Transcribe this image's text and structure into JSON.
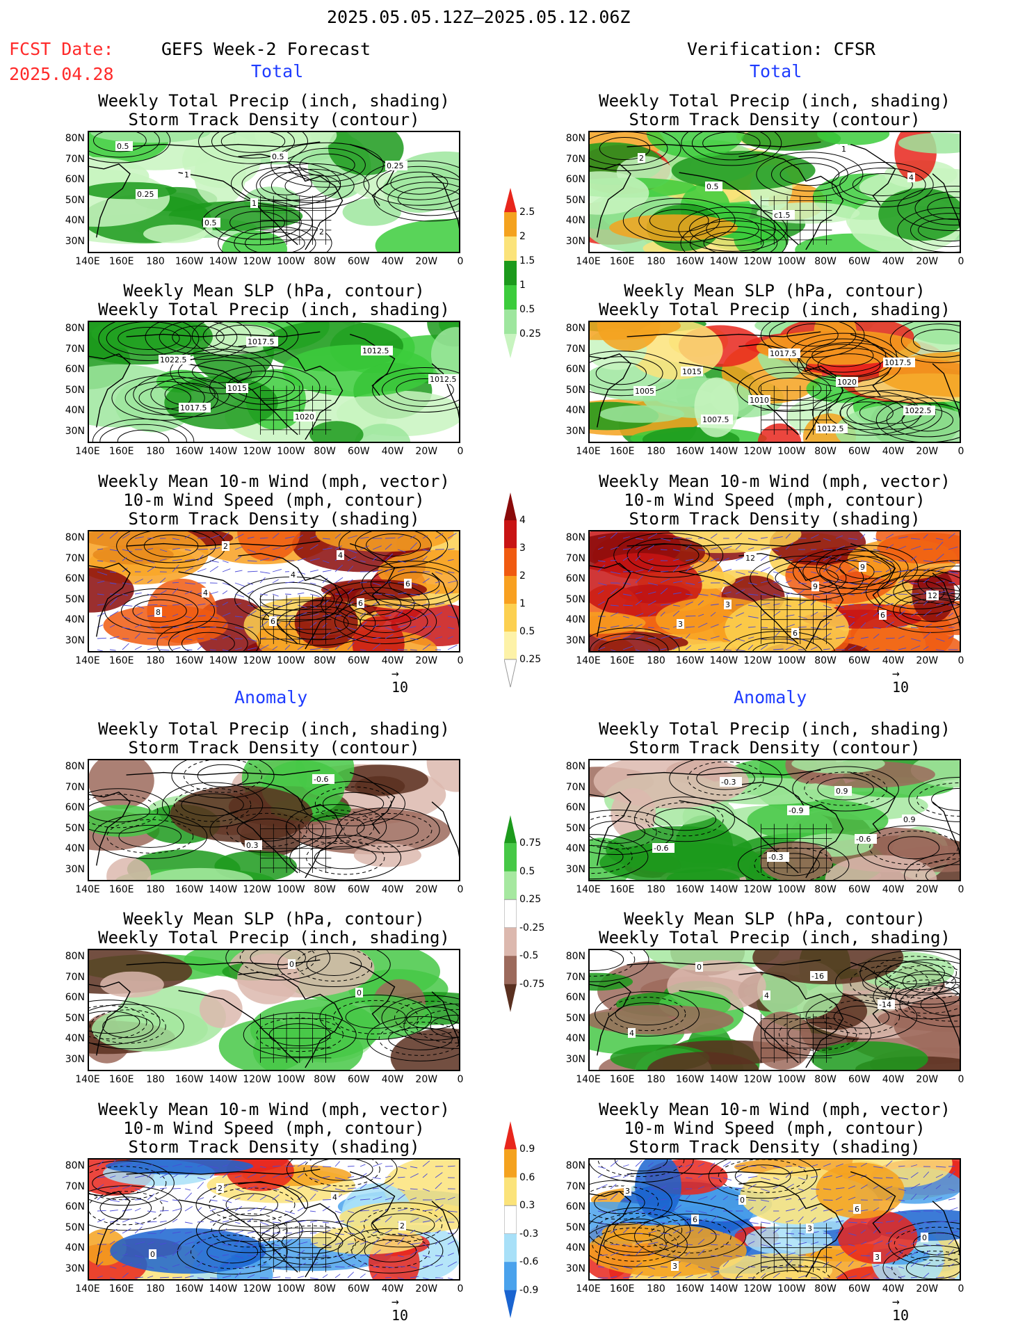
{
  "header": {
    "period": "2025.05.05.12Z–2025.05.12.06Z",
    "fcst_label": "FCST Date:",
    "fcst_date": "2025.04.28",
    "left_title": "GEFS Week-2 Forecast",
    "right_title": "Verification: CFSR",
    "section_total": "Total",
    "section_anomaly": "Anomaly"
  },
  "panel_titles": {
    "precip": [
      "Weekly Total Precip (inch, shading)",
      "Storm Track Density (contour)"
    ],
    "slp": [
      "Weekly Mean SLP (hPa, contour)",
      "Weekly Total Precip (inch, shading)"
    ],
    "wind": [
      "Weekly Mean 10-m Wind (mph, vector)",
      "10-m Wind Speed (mph, contour)",
      "Storm Track Density (shading)"
    ]
  },
  "axes": {
    "lat_labels": [
      "80N",
      "70N",
      "60N",
      "50N",
      "40N",
      "30N"
    ],
    "lon_labels": [
      "140E",
      "160E",
      "180",
      "160W",
      "140W",
      "120W",
      "100W",
      "80W",
      "60W",
      "40W",
      "20W",
      "0"
    ]
  },
  "vector_ref": "10",
  "colorbars": {
    "precip_total": {
      "labels": [
        "2.5",
        "2",
        "1.5",
        "1",
        "0.5",
        "0.25"
      ],
      "colors": [
        "#e8261c",
        "#f4a21e",
        "#fbe37a",
        "#1c9a1c",
        "#3ccc3c",
        "#9ee69e",
        "#c8f4c0"
      ]
    },
    "wind_total": {
      "labels": [
        "4",
        "3",
        "2",
        "1",
        "0.5",
        "0.25"
      ],
      "colors": [
        "#8a0a0a",
        "#c81414",
        "#f05a10",
        "#f8a020",
        "#fcd050",
        "#fdf2a8",
        "#ffffff"
      ]
    },
    "precip_anom": {
      "labels": [
        "0.75",
        "0.5",
        "0.25",
        "-0.25",
        "-0.5",
        "-0.75"
      ],
      "colors": [
        "#1c9a1c",
        "#46c846",
        "#a6e8a0",
        "#ffffff",
        "#dcb8ae",
        "#9c6a5c",
        "#5a3020"
      ]
    },
    "wind_anom": {
      "labels": [
        "0.9",
        "0.6",
        "0.3",
        "-0.3",
        "-0.6",
        "-0.9"
      ],
      "colors": [
        "#e8261c",
        "#f4a21e",
        "#fbe37a",
        "#ffffff",
        "#a8e0f8",
        "#4aa2ec",
        "#1a64d0"
      ]
    }
  },
  "contour_labels": {
    "f_precip": [
      "0.5",
      "1",
      "1",
      "2",
      "0.25",
      "0.25",
      "0.5",
      "0.5"
    ],
    "v_precip": [
      "2",
      "0.5",
      "c1.5",
      "1",
      "4"
    ],
    "f_slp": [
      "1022.5",
      "1015",
      "1020",
      "1012.5",
      "1012.5",
      "1017.5",
      "1017.5"
    ],
    "v_slp": [
      "1015",
      "1010",
      "1012.5",
      "1017.5",
      "1005",
      "1007.5",
      "1017.5",
      "1020",
      "1022.5"
    ],
    "f_wind": [
      "4",
      "6",
      "4",
      "6",
      "8",
      "2",
      "4",
      "6"
    ],
    "v_wind": [
      "3",
      "6",
      "9",
      "12",
      "3",
      "12",
      "9",
      "6"
    ],
    "f_panom": [
      "0.3",
      "-0.6"
    ],
    "v_panom": [
      "-0.3",
      "0.9",
      "0.9",
      "-0.6",
      "-0.3",
      "-0.9",
      "-0.6"
    ],
    "f_slpanom": [
      "0",
      "0"
    ],
    "v_slpanom": [
      "-16",
      "-14",
      "4",
      "0",
      "4"
    ],
    "f_wanom": [
      "4",
      "2",
      "0",
      "2"
    ],
    "v_wanom": [
      "6",
      "0",
      "3",
      "0",
      "3",
      "3",
      "3",
      "6"
    ]
  }
}
